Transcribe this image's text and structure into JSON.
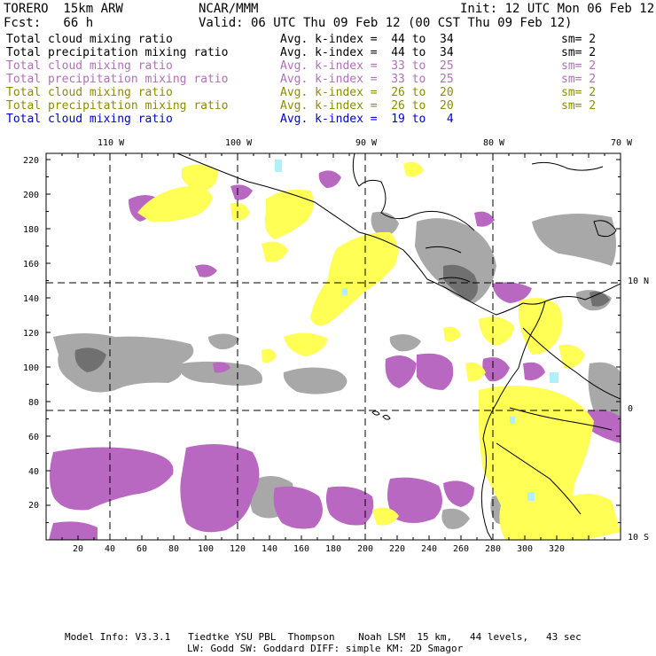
{
  "header": {
    "model": "TORERO  15km ARW",
    "org": "NCAR/MMM",
    "init": "Init: 12 UTC Mon 06 Feb 12",
    "fcst": "Fcst:   66 h",
    "valid": "Valid: 06 UTC Thu 09 Feb 12 (00 CST Thu 09 Feb 12)"
  },
  "legend": [
    {
      "field": "Total cloud mixing ratio",
      "kindex": "Avg. k-index =  44 to  34",
      "sm": "sm= 2",
      "color": "#000000"
    },
    {
      "field": "Total precipitation mixing ratio",
      "kindex": "Avg. k-index =  44 to  34",
      "sm": "sm= 2",
      "color": "#000000"
    },
    {
      "field": "Total cloud mixing ratio",
      "kindex": "Avg. k-index =  33 to  25",
      "sm": "sm= 2",
      "color": "#b070b8"
    },
    {
      "field": "Total precipitation mixing ratio",
      "kindex": "Avg. k-index =  33 to  25",
      "sm": "sm= 2",
      "color": "#b070b8"
    },
    {
      "field": "Total cloud mixing ratio",
      "kindex": "Avg. k-index =  26 to  20",
      "sm": "sm= 2",
      "color": "#8c8c00"
    },
    {
      "field": "Total precipitation mixing ratio",
      "kindex": "Avg. k-index =  26 to  20",
      "sm": "sm= 2",
      "color": "#8c8c00"
    },
    {
      "field": "Total cloud mixing ratio",
      "kindex": "Avg. k-index =  19 to   4",
      "sm": "",
      "color": "#0000d0"
    }
  ],
  "map": {
    "lon_labels": [
      "110 W",
      "100 W",
      "90 W",
      "80 W",
      "70 W"
    ],
    "lat_labels": [
      "10 N",
      "0",
      "10 S"
    ],
    "x_ticks": [
      "20",
      "40",
      "60",
      "80",
      "100",
      "120",
      "140",
      "160",
      "180",
      "200",
      "220",
      "240",
      "260",
      "280",
      "300",
      "320"
    ],
    "y_ticks": [
      "20",
      "40",
      "60",
      "80",
      "100",
      "120",
      "140",
      "160",
      "180",
      "200",
      "220"
    ],
    "colors": {
      "gray": "#a0a0a0",
      "purple": "#b060b8",
      "yellow": "#ffff50",
      "cyan": "#b0f0f8"
    }
  },
  "footer": {
    "line1": "Model Info: V3.3.1   Tiedtke YSU PBL  Thompson    Noah LSM  15 km,   44 levels,   43 sec",
    "line2": "LW: Godd SW: Goddard DIFF: simple KM: 2D Smagor"
  }
}
